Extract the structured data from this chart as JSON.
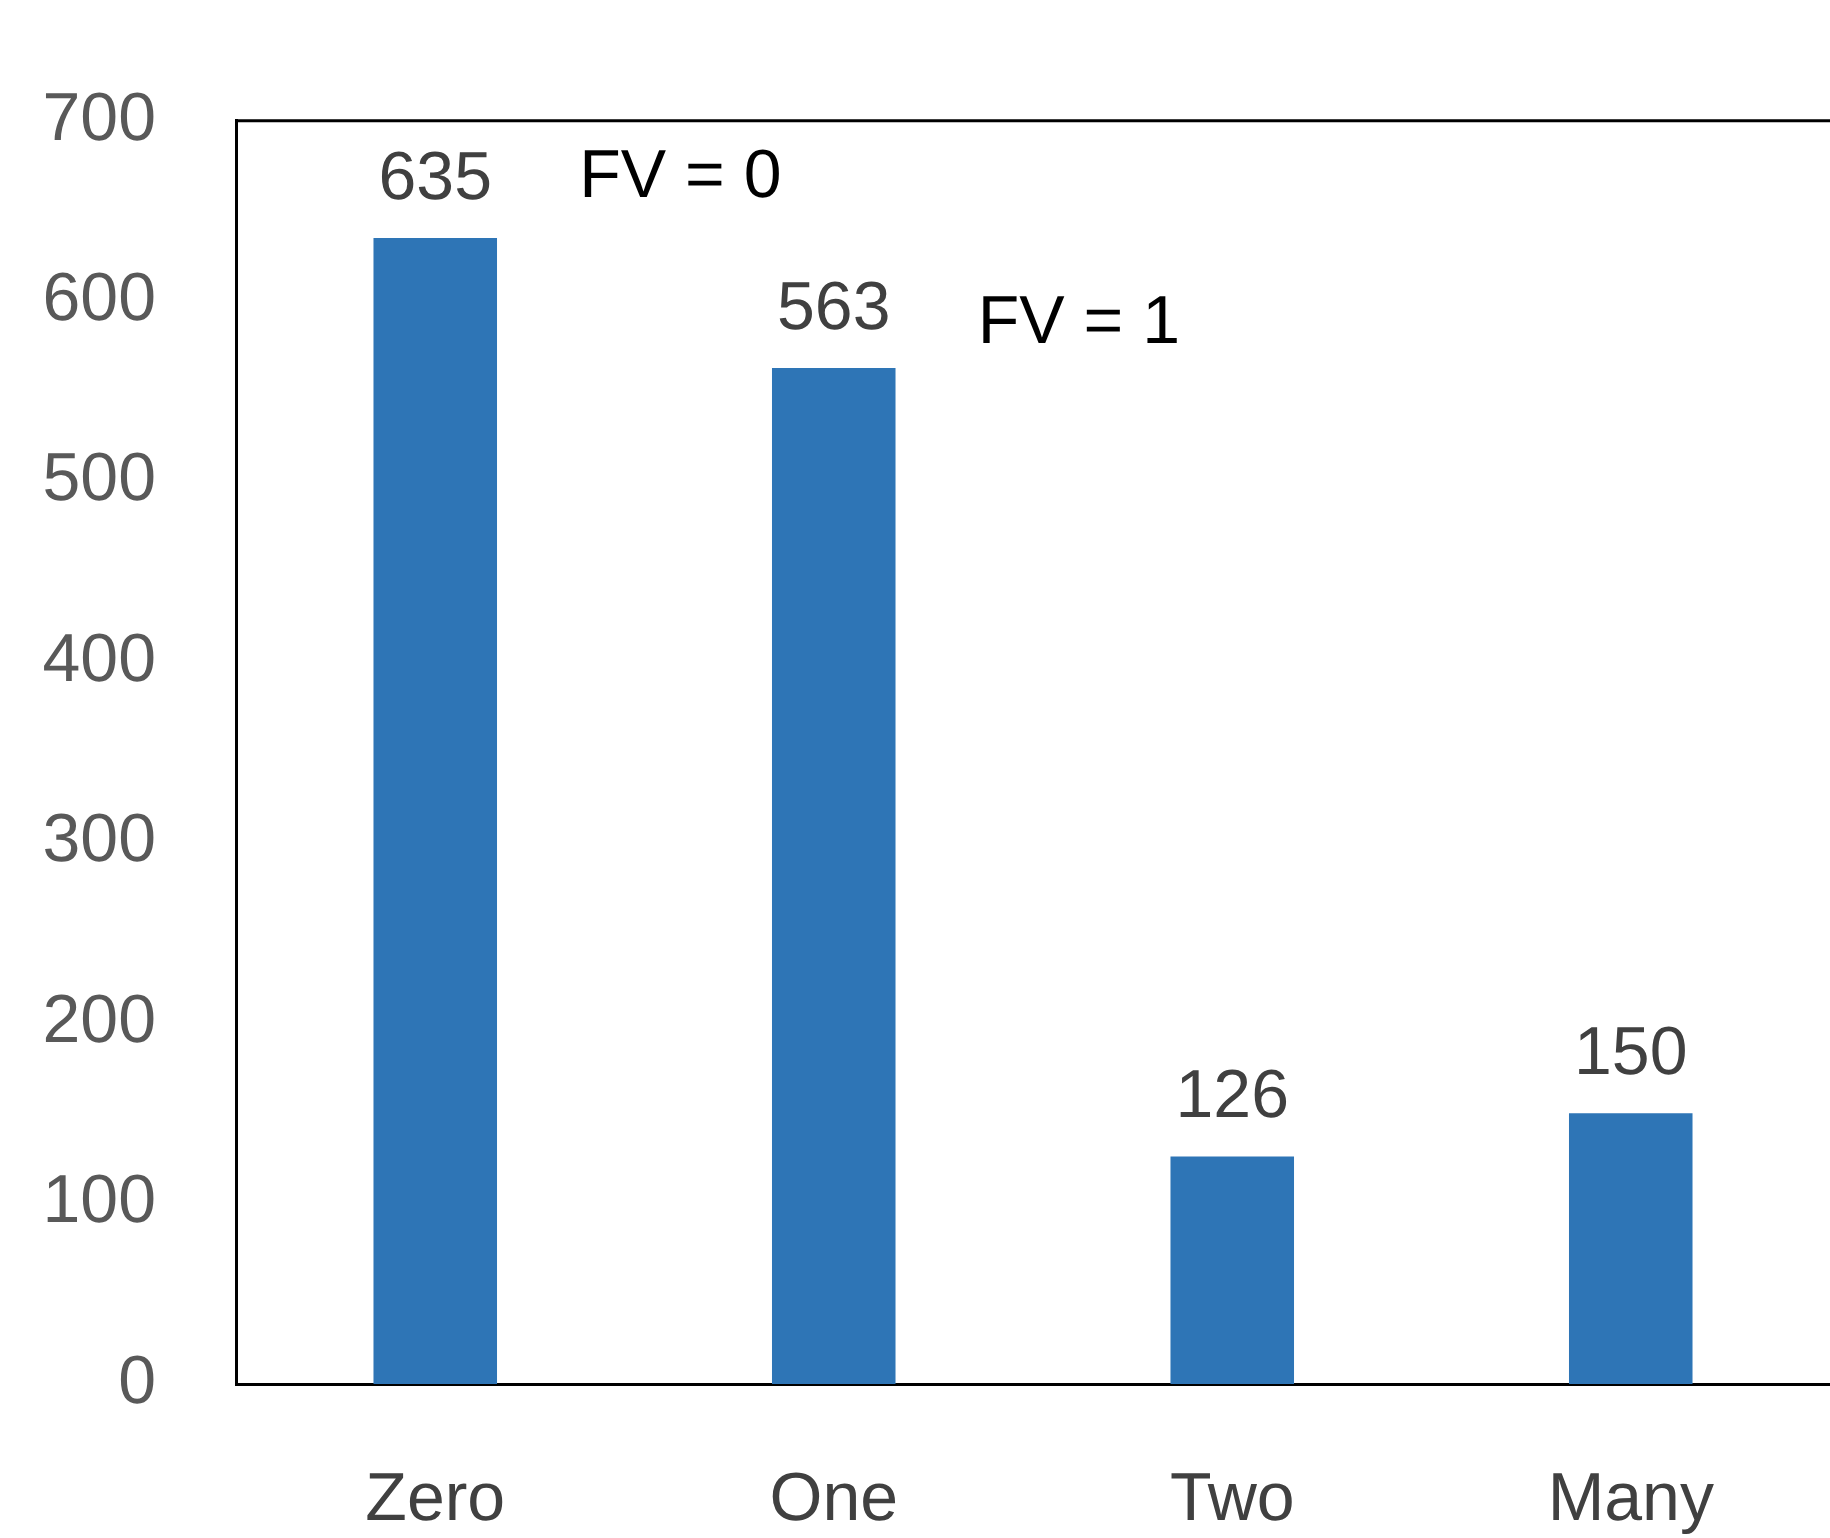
{
  "chart_data": {
    "type": "bar",
    "categories": [
      "Zero",
      "One",
      "Two",
      "Many"
    ],
    "values": [
      635,
      563,
      126,
      150
    ],
    "color": "#2e75b6",
    "ylim": [
      0,
      700
    ],
    "yticks": [
      0,
      100,
      200,
      300,
      400,
      500,
      600,
      700
    ],
    "grid": false,
    "legend": false,
    "data_labels": true,
    "annotations": [
      "FV = 0",
      "FV = 1"
    ]
  }
}
